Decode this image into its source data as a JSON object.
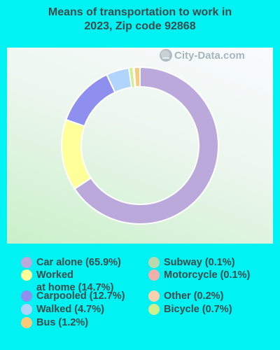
{
  "chart_data": {
    "type": "pie",
    "style": "donut",
    "title_lines": [
      "Means of transportation to work in",
      "2023, Zip code 92868"
    ],
    "watermark": "City-Data.com",
    "slices": [
      {
        "label": "Car alone (65.9%)",
        "label_lines": [
          "Car alone (65.9%)"
        ],
        "value": 65.9,
        "color": "#bca9dc"
      },
      {
        "label": "Worked at home (14.7%)",
        "label_lines": [
          "Worked",
          "at home (14.7%)"
        ],
        "value": 14.7,
        "color": "#ffff99"
      },
      {
        "label": "Carpooled (12.7%)",
        "label_lines": [
          "Carpooled (12.7%)"
        ],
        "value": 12.7,
        "color": "#8f8ff0"
      },
      {
        "label": "Walked (4.7%)",
        "label_lines": [
          "Walked (4.7%)"
        ],
        "value": 4.7,
        "color": "#b0d4fa"
      },
      {
        "label": "Bus (1.2%)",
        "label_lines": [
          "Bus (1.2%)"
        ],
        "value": 1.2,
        "color": "#fbc97a"
      },
      {
        "label": "Subway (0.1%)",
        "label_lines": [
          "Subway (0.1%)"
        ],
        "value": 0.1,
        "color": "#b8d9ae"
      },
      {
        "label": "Motorcycle (0.1%)",
        "label_lines": [
          "Motorcycle (0.1%)"
        ],
        "value": 0.1,
        "color": "#f2b0ac"
      },
      {
        "label": "Other (0.2%)",
        "label_lines": [
          "Other (0.2%)"
        ],
        "value": 0.2,
        "color": "#fbd1ad"
      },
      {
        "label": "Bicycle (0.7%)",
        "label_lines": [
          "Bicycle (0.7%)"
        ],
        "value": 0.7,
        "color": "#d0f090"
      }
    ],
    "draw_order": [
      "Car alone (65.9%)",
      "Worked at home (14.7%)",
      "Carpooled (12.7%)",
      "Walked (4.7%)",
      "Subway (0.1%)",
      "Bicycle (0.7%)",
      "Motorcycle (0.1%)",
      "Other (0.2%)",
      "Bus (1.2%)"
    ]
  }
}
